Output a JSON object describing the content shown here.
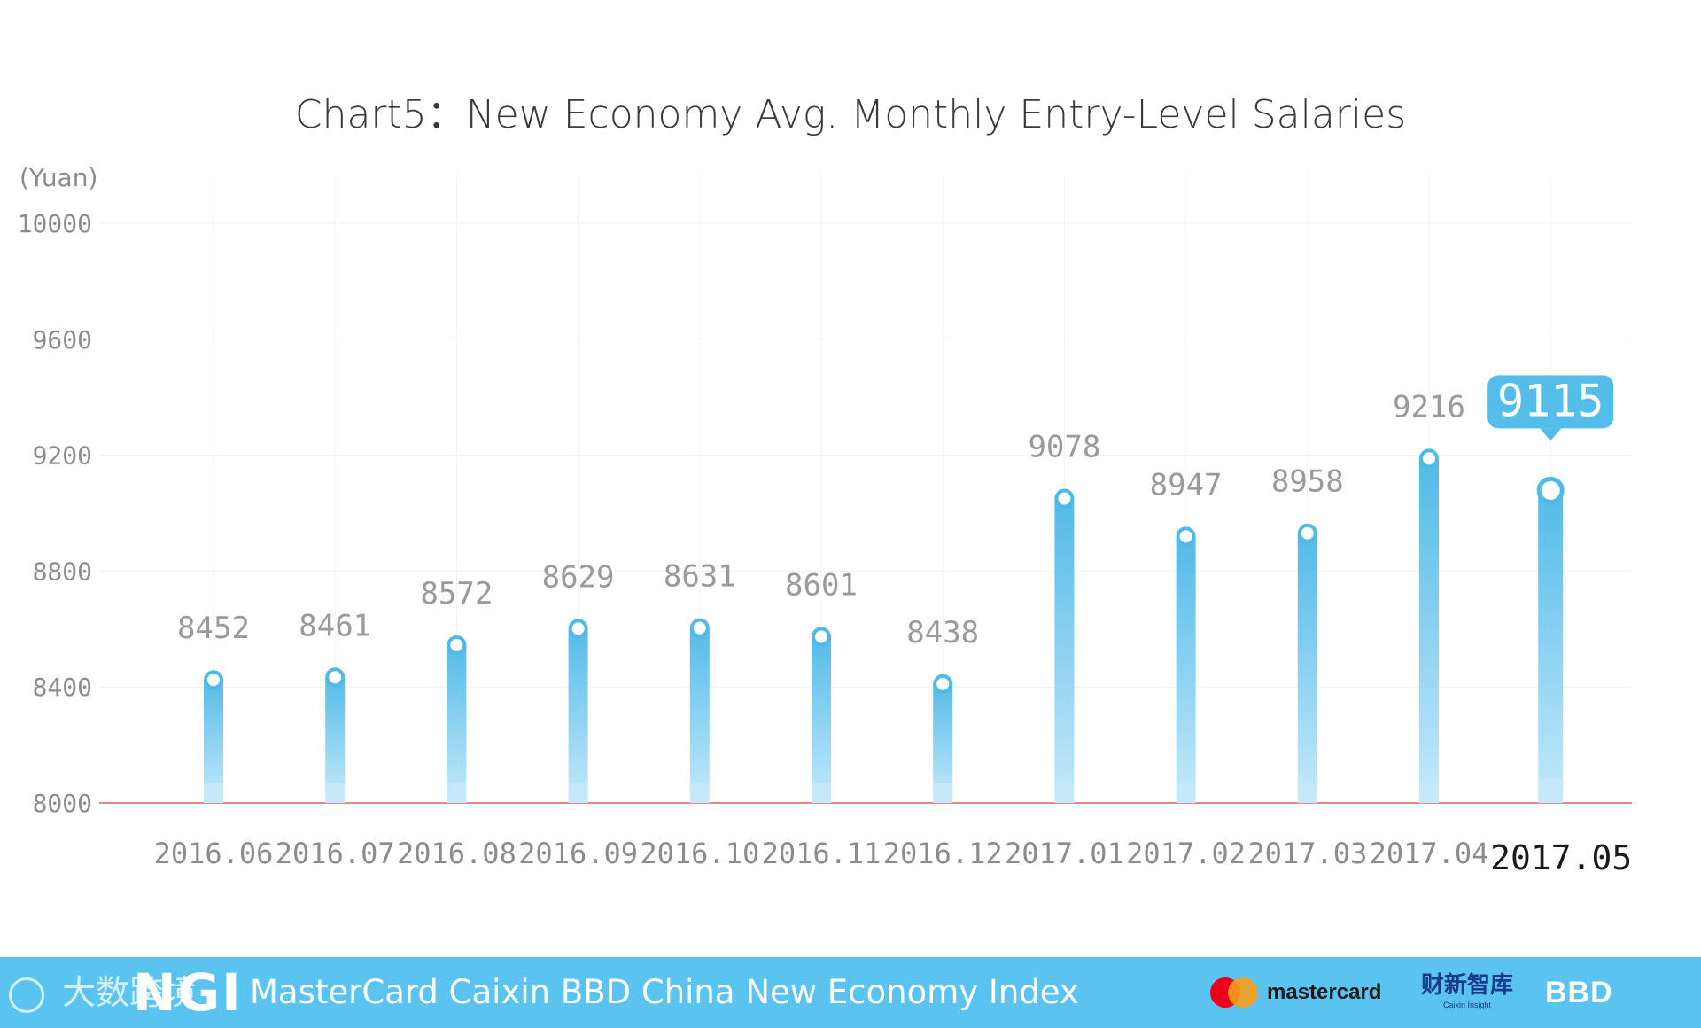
{
  "chart_data": {
    "type": "bar",
    "title": "Chart5：New Economy Avg. Monthly Entry-Level Salaries",
    "unit_label": "(Yuan)",
    "categories": [
      "2016.06",
      "2016.07",
      "2016.08",
      "2016.09",
      "2016.10",
      "2016.11",
      "2016.12",
      "2017.01",
      "2017.02",
      "2017.03",
      "2017.04",
      "2017.05"
    ],
    "values": [
      8452,
      8461,
      8572,
      8629,
      8631,
      8601,
      8438,
      9078,
      8947,
      8958,
      9216,
      9115
    ],
    "data_labels": [
      "8452",
      "8461",
      "8572",
      "8629",
      "8631",
      "8601",
      "8438",
      "9078",
      "8947",
      "8958",
      "9216",
      "9115"
    ],
    "ylim": [
      8000,
      10000
    ],
    "yticks": [
      8000,
      8400,
      8800,
      9200,
      9600,
      10000
    ],
    "ytick_labels": [
      "8000",
      "8400",
      "8800",
      "9200",
      "9600",
      "10000"
    ],
    "highlight_index": 11,
    "grid": true,
    "bar_color_top": "#4fb9e8",
    "bar_color_bottom": "#c5e9fa",
    "callout_color": "#55bdea",
    "baseline_color": "#e28a8a"
  },
  "footer": {
    "watermark_text": "大数跨境",
    "logo_text": "NGI",
    "title": "MasterCard Caixin BBD China New Economy Index",
    "mastercard_text": "mastercard",
    "caixin_text": "财新智库",
    "caixin_sub": "Caixin Insight",
    "bbd_text": "BBD",
    "background_color": "#5bc3f0"
  }
}
